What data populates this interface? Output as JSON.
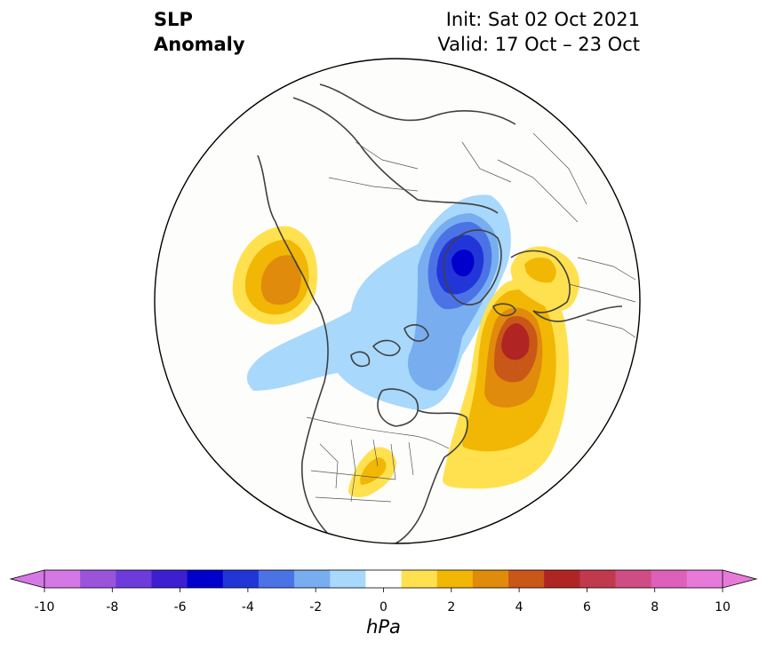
{
  "title": {
    "line1": "SLP",
    "line2": "Anomaly",
    "init": "Init: Sat 02 Oct 2021",
    "valid": "Valid: 17 Oct – 23 Oct"
  },
  "colorbar": {
    "units": "hPa",
    "ticks": [
      "-10",
      "-8",
      "-6",
      "-4",
      "-2",
      "0",
      "2",
      "4",
      "6",
      "8",
      "10"
    ],
    "levels": [
      -10,
      -9,
      -8,
      -7,
      -6,
      -5,
      -4,
      -3,
      -2,
      -1,
      1,
      2,
      3,
      4,
      5,
      6,
      7,
      8,
      9,
      10
    ],
    "colors": [
      "#d677e6",
      "#9a54dc",
      "#6d3bdb",
      "#3d1ed0",
      "#0000cc",
      "#2236d8",
      "#4b73e6",
      "#78aef0",
      "#a8d8fb",
      "#ffffff",
      "#ffe14f",
      "#f2b705",
      "#e08b0c",
      "#c95717",
      "#b02424",
      "#c0394d",
      "#cf4d83",
      "#de60b9",
      "#e77ad9"
    ],
    "extend_low_color": "#d677e6",
    "extend_high_color": "#e77ad9"
  },
  "map": {
    "projection": "north-polar-stereographic",
    "region": "Northern Hemisphere (North America / Arctic / North Atlantic / Europe)",
    "anomaly_features": [
      {
        "region": "Alaska / Bering Sea",
        "sign": "positive",
        "peak_hpa": 4
      },
      {
        "region": "Greenland Sea / Svalbard",
        "sign": "negative",
        "peak_hpa": -6
      },
      {
        "region": "Arctic Ocean / Canadian Archipelago",
        "sign": "negative",
        "peak_hpa": -3
      },
      {
        "region": "North Atlantic / Norway",
        "sign": "positive",
        "peak_hpa": 6
      },
      {
        "region": "Scandinavia / Baltic",
        "sign": "positive",
        "peak_hpa": 2
      },
      {
        "region": "US Southern Plains",
        "sign": "positive",
        "peak_hpa": 2
      }
    ]
  }
}
